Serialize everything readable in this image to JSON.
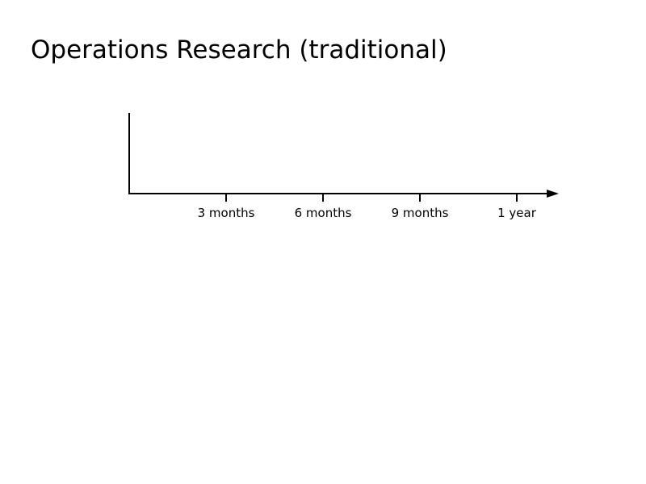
{
  "slide": {
    "title": "Operations Research (traditional)"
  },
  "timeline": {
    "tick_labels": [
      "3 months",
      "6 months",
      "9 months",
      "1 year"
    ],
    "line_color": "#000000"
  }
}
